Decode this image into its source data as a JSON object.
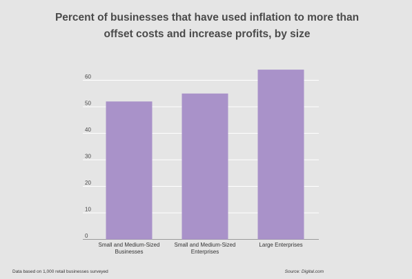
{
  "chart_data": {
    "type": "bar",
    "title": "Percent of businesses that have used inflation to more than offset costs and increase profits, by size",
    "categories": [
      [
        "Small and Medium-Sized",
        "Businesses"
      ],
      [
        "Small and Medium-Sized",
        "Enterprises"
      ],
      [
        "Large Enterprises"
      ]
    ],
    "values": [
      52,
      55,
      64
    ],
    "ylim": [
      0,
      60
    ],
    "yticks": [
      0,
      10,
      20,
      30,
      40,
      50,
      60
    ],
    "grid": true,
    "bar_color": "#a992c9",
    "grid_color": "#ffffff"
  },
  "footer": {
    "note": "Data based on 1,000 retail businesses surveyed",
    "source": "Source: Digital.com"
  }
}
